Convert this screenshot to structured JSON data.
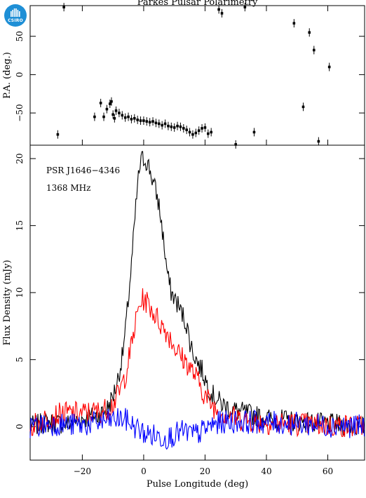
{
  "chart_data": [
    {
      "type": "scatter",
      "title": "Parkes Pulsar Polarimetry",
      "xlabel": "",
      "ylabel": "P.A. (deg.)",
      "xlim": [
        -37,
        72
      ],
      "ylim": [
        -92,
        90
      ],
      "yticks": [
        -50,
        0,
        50
      ],
      "points": [
        [
          -28,
          -78
        ],
        [
          -26,
          88
        ],
        [
          -16,
          -55
        ],
        [
          -14,
          -37
        ],
        [
          -13,
          -55
        ],
        [
          -12,
          -45
        ],
        [
          -11,
          -38
        ],
        [
          -10.5,
          -35
        ],
        [
          -10,
          -52
        ],
        [
          -9.5,
          -57
        ],
        [
          -9,
          -47
        ],
        [
          -8,
          -50
        ],
        [
          -7,
          -53
        ],
        [
          -6,
          -56
        ],
        [
          -5,
          -55
        ],
        [
          -4,
          -58
        ],
        [
          -3,
          -57
        ],
        [
          -2,
          -59
        ],
        [
          -1,
          -60
        ],
        [
          0,
          -60
        ],
        [
          1,
          -61
        ],
        [
          2,
          -62
        ],
        [
          3,
          -61
        ],
        [
          4,
          -63
        ],
        [
          5,
          -64
        ],
        [
          6,
          -66
        ],
        [
          7,
          -64
        ],
        [
          8,
          -67
        ],
        [
          9,
          -68
        ],
        [
          10,
          -69
        ],
        [
          11,
          -67
        ],
        [
          12,
          -68
        ],
        [
          13,
          -70
        ],
        [
          14,
          -72
        ],
        [
          15,
          -75
        ],
        [
          16,
          -78
        ],
        [
          17,
          -76
        ],
        [
          18,
          -73
        ],
        [
          19,
          -70
        ],
        [
          20,
          -69
        ],
        [
          21,
          -77
        ],
        [
          22,
          -75
        ],
        [
          24.5,
          85
        ],
        [
          25.5,
          80
        ],
        [
          30,
          -91
        ],
        [
          33,
          88
        ],
        [
          36,
          -75
        ],
        [
          49,
          67
        ],
        [
          52,
          -42
        ],
        [
          54,
          55
        ],
        [
          55.5,
          32
        ],
        [
          57,
          -87
        ],
        [
          60.5,
          10
        ]
      ]
    },
    {
      "type": "line",
      "xlabel": "Pulse Longitude (deg)",
      "ylabel": "Flux Density (mJy)",
      "xlim": [
        -37,
        72
      ],
      "ylim": [
        -2.5,
        21
      ],
      "xticks": [
        -20,
        0,
        20,
        40,
        60
      ],
      "yticks": [
        0,
        5,
        10,
        15,
        20
      ],
      "annotations": [
        "PSR J1646−4346",
        "1368 MHz"
      ],
      "series": [
        {
          "color": "#000000",
          "points": [
            [
              -37,
              0
            ],
            [
              -32,
              0.3
            ],
            [
              -25,
              0.2
            ],
            [
              -20,
              0.6
            ],
            [
              -15,
              0.8
            ],
            [
              -12,
              1.3
            ],
            [
              -10,
              2.3
            ],
            [
              -9,
              3
            ],
            [
              -8,
              4
            ],
            [
              -7,
              5.2
            ],
            [
              -6,
              7
            ],
            [
              -5,
              9.5
            ],
            [
              -4,
              12
            ],
            [
              -3,
              15
            ],
            [
              -2,
              18
            ],
            [
              -1,
              19.8
            ],
            [
              0,
              20
            ],
            [
              1,
              19.8
            ],
            [
              2,
              19.2
            ],
            [
              3,
              18.3
            ],
            [
              4,
              17.5
            ],
            [
              5,
              16.5
            ],
            [
              6,
              14.8
            ],
            [
              7,
              12.8
            ],
            [
              8,
              11
            ],
            [
              9,
              10
            ],
            [
              10,
              9.6
            ],
            [
              11,
              9.2
            ],
            [
              12,
              8.6
            ],
            [
              13,
              8.2
            ],
            [
              14,
              7.6
            ],
            [
              15,
              6.4
            ],
            [
              16,
              5.6
            ],
            [
              17,
              5.1
            ],
            [
              18,
              4.6
            ],
            [
              19,
              4.2
            ],
            [
              20,
              3.6
            ],
            [
              21,
              3
            ],
            [
              22,
              2.5
            ],
            [
              24,
              2
            ],
            [
              26,
              1.6
            ],
            [
              30,
              1.2
            ],
            [
              35,
              0.9
            ],
            [
              40,
              0.6
            ],
            [
              50,
              0.4
            ],
            [
              60,
              0.2
            ],
            [
              72,
              0
            ]
          ]
        },
        {
          "color": "#ff0000",
          "points": [
            [
              -37,
              0
            ],
            [
              -30,
              0.8
            ],
            [
              -25,
              1
            ],
            [
              -20,
              1
            ],
            [
              -15,
              1.1
            ],
            [
              -12,
              1.3
            ],
            [
              -10,
              1.7
            ],
            [
              -8,
              2.5
            ],
            [
              -6,
              3.8
            ],
            [
              -4,
              6
            ],
            [
              -3,
              7.3
            ],
            [
              -2,
              8.5
            ],
            [
              -1,
              9.3
            ],
            [
              0,
              9.5
            ],
            [
              1,
              9.3
            ],
            [
              2,
              9
            ],
            [
              3,
              8.6
            ],
            [
              4,
              8.2
            ],
            [
              5,
              7.9
            ],
            [
              6,
              7.5
            ],
            [
              7,
              7.2
            ],
            [
              8,
              6.9
            ],
            [
              9,
              6.5
            ],
            [
              10,
              6
            ],
            [
              11,
              5.6
            ],
            [
              12,
              5.3
            ],
            [
              13,
              5
            ],
            [
              14,
              4.8
            ],
            [
              15,
              4.4
            ],
            [
              16,
              4.1
            ],
            [
              17,
              3.7
            ],
            [
              18,
              3.3
            ],
            [
              19,
              2.8
            ],
            [
              20,
              2.3
            ],
            [
              22,
              1.7
            ],
            [
              24,
              1.2
            ],
            [
              28,
              0.8
            ],
            [
              32,
              0.5
            ],
            [
              40,
              0.3
            ],
            [
              50,
              0.2
            ],
            [
              60,
              0.1
            ],
            [
              72,
              0
            ]
          ]
        },
        {
          "color": "#0000ff",
          "points": [
            [
              -37,
              0
            ],
            [
              -30,
              0.2
            ],
            [
              -20,
              0.1
            ],
            [
              -15,
              0.3
            ],
            [
              -10,
              0.5
            ],
            [
              -7,
              0.6
            ],
            [
              -5,
              0.4
            ],
            [
              -3,
              0
            ],
            [
              -1,
              -0.3
            ],
            [
              0,
              -0.5
            ],
            [
              2,
              -0.6
            ],
            [
              4,
              -0.7
            ],
            [
              6,
              -0.8
            ],
            [
              8,
              -0.8
            ],
            [
              10,
              -0.6
            ],
            [
              12,
              -0.4
            ],
            [
              14,
              -0.4
            ],
            [
              16,
              -0.6
            ],
            [
              18,
              -0.5
            ],
            [
              20,
              -0.2
            ],
            [
              22,
              0.1
            ],
            [
              25,
              0.3
            ],
            [
              30,
              0.4
            ],
            [
              40,
              0.3
            ],
            [
              50,
              0.2
            ],
            [
              60,
              0.1
            ],
            [
              72,
              0
            ]
          ]
        }
      ]
    }
  ]
}
